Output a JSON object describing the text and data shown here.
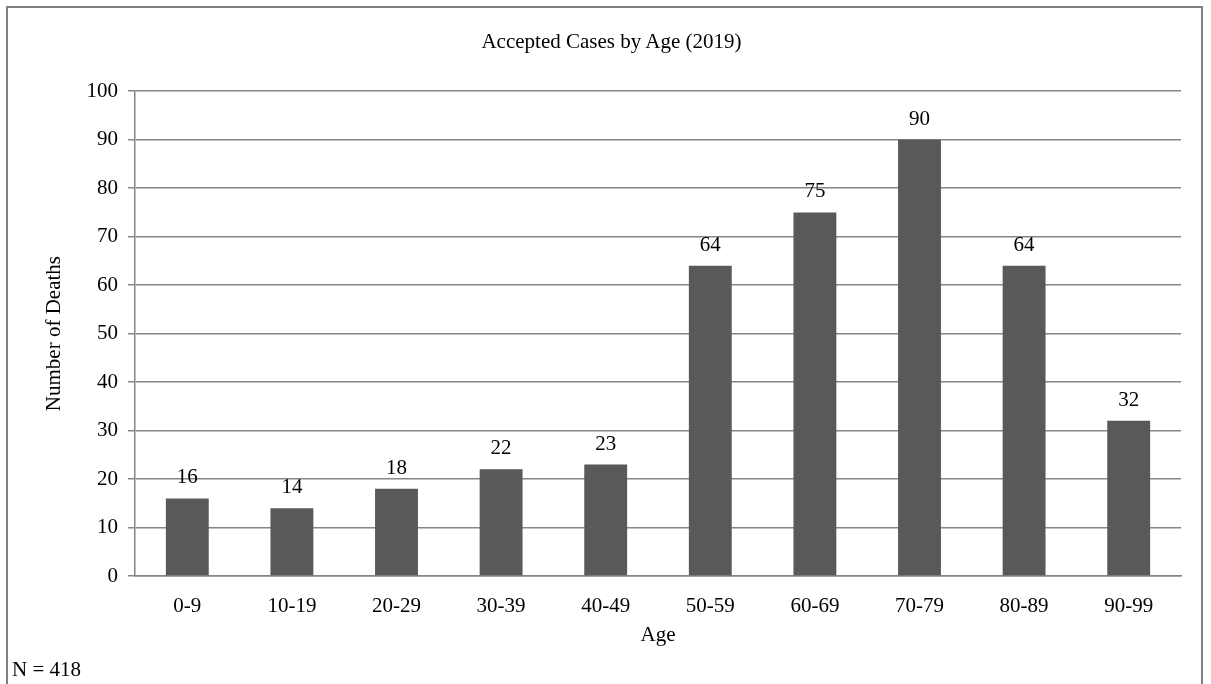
{
  "chart_data": {
    "type": "bar",
    "title": "Accepted Cases by Age (2019)",
    "xlabel": "Age",
    "ylabel": "Number of Deaths",
    "categories": [
      "0-9",
      "10-19",
      "20-29",
      "30-39",
      "40-49",
      "50-59",
      "60-69",
      "70-79",
      "80-89",
      "90-99"
    ],
    "values": [
      16,
      14,
      18,
      22,
      23,
      64,
      75,
      90,
      64,
      32
    ],
    "color": "#595959",
    "ylim": [
      0,
      100
    ],
    "yticks": [
      0,
      10,
      20,
      30,
      40,
      50,
      60,
      70,
      80,
      90,
      100
    ],
    "grid": "y",
    "data_labels": true,
    "annotations": [
      "N = 418"
    ]
  }
}
